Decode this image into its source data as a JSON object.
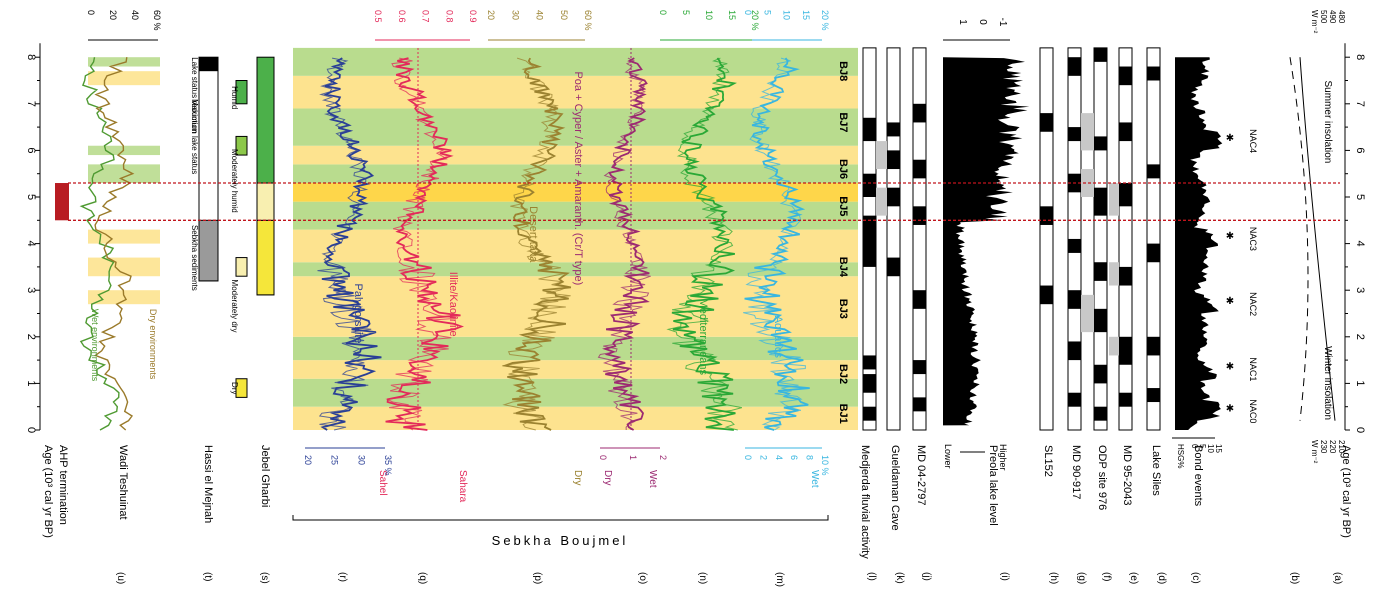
{
  "chart_data": {
    "type": "line",
    "title": "",
    "age_axis": {
      "label": "Age (10³ cal yr BP)",
      "ticks": [
        0,
        1,
        2,
        3,
        4,
        5,
        6,
        7,
        8
      ],
      "range": [
        0,
        8.3
      ]
    },
    "ahp_termination": {
      "start": 4.5,
      "end": 5.3
    },
    "section_label": "Sebkha Boujmel",
    "panel_letters": [
      "(a)",
      "(b)",
      "(c)",
      "(d)",
      "(e)",
      "(f)",
      "(g)",
      "(h)",
      "(i)",
      "(j)",
      "(k)",
      "(l)",
      "(m)",
      "(n)",
      "(o)",
      "(p)",
      "(q)",
      "(r)",
      "(s)",
      "(t)",
      "(u)"
    ],
    "panel_titles": [
      "Age (10³ cal yr BP)",
      "",
      "Bond events",
      "Lake Siles",
      "MD 95-2043",
      "ODP site 976",
      "MD 90-917",
      "SL152",
      "Preola lake level",
      "MD 04-2797",
      "Gueldaman Cave",
      "Medjerda fluvial activity",
      "",
      "",
      "",
      "",
      "",
      "",
      "Jebel Gharbi",
      "Hassi el Mejnah",
      "Wadi Teshuinat",
      "AHP termination",
      "Age (10³ cal yr BP)"
    ],
    "bands": [
      {
        "from": 0.0,
        "to": 0.5,
        "color": "yellow"
      },
      {
        "from": 0.5,
        "to": 1.1,
        "color": "green"
      },
      {
        "from": 1.1,
        "to": 1.5,
        "color": "yellow"
      },
      {
        "from": 1.5,
        "to": 2.0,
        "color": "green"
      },
      {
        "from": 2.0,
        "to": 3.3,
        "color": "yellow"
      },
      {
        "from": 3.3,
        "to": 3.6,
        "color": "green"
      },
      {
        "from": 3.6,
        "to": 4.3,
        "color": "yellow"
      },
      {
        "from": 4.3,
        "to": 4.9,
        "color": "green"
      },
      {
        "from": 4.9,
        "to": 5.3,
        "color": "yellow"
      },
      {
        "from": 5.3,
        "to": 5.7,
        "color": "green"
      },
      {
        "from": 5.7,
        "to": 6.1,
        "color": "yellow"
      },
      {
        "from": 6.1,
        "to": 6.9,
        "color": "green"
      },
      {
        "from": 6.9,
        "to": 7.6,
        "color": "yellow"
      },
      {
        "from": 7.6,
        "to": 8.2,
        "color": "green"
      }
    ],
    "bj_labels": [
      {
        "label": "BJ1",
        "age": 0.35
      },
      {
        "label": "BJ2",
        "age": 1.2
      },
      {
        "label": "BJ3",
        "age": 2.6
      },
      {
        "label": "BJ4",
        "age": 3.5
      },
      {
        "label": "BJ5",
        "age": 4.8
      },
      {
        "label": "BJ6",
        "age": 5.6
      },
      {
        "label": "BJ7",
        "age": 6.6
      },
      {
        "label": "BJ8",
        "age": 7.7
      }
    ],
    "insolation": {
      "top_ticks": [
        "W m⁻²",
        "500",
        "490",
        "480"
      ],
      "bottom_ticks": [
        "W m⁻²",
        "230",
        "220",
        "210"
      ],
      "summer_label": "Summer insolation",
      "winter_label": "Winter insolation"
    },
    "nac_labels": [
      {
        "label": "NAC0",
        "age": 0.4
      },
      {
        "label": "NAC1",
        "age": 1.3
      },
      {
        "label": "NAC2",
        "age": 2.7
      },
      {
        "label": "NAC3",
        "age": 4.1
      },
      {
        "label": "NAC4",
        "age": 6.2
      }
    ],
    "hsg": {
      "label": "HSG%",
      "ticks": [
        "0",
        "5",
        "10",
        "15"
      ]
    },
    "preola": {
      "top_ticks": [
        "1",
        "0",
        "-1"
      ],
      "lower": "Lower",
      "higher": "Higher"
    },
    "series": [
      {
        "name": "Aquatics",
        "color": "#38b6e0",
        "top_ticks": [
          "0",
          "5",
          "10",
          "15",
          "20 %"
        ],
        "bottom_ticks": [
          "0",
          "2",
          "4",
          "6",
          "8",
          "10 %"
        ],
        "bottom_label": "Wet"
      },
      {
        "name": "Mediterraneans",
        "color": "#2aa836",
        "top_ticks": [
          "0",
          "5",
          "10",
          "15",
          "20 %"
        ],
        "bottom_ticks": [],
        "bottom_label": ""
      },
      {
        "name": "Poa + Cyper / Aster + Amaranth. (Cr/T type)",
        "color": "#9c2a72",
        "top_ticks": [],
        "bottom_ticks": [
          "0",
          "1",
          "2"
        ],
        "bottom_left": "Dry",
        "bottom_label": "Wet"
      },
      {
        "name": "Desert taxa",
        "color": "#9b8230",
        "top_ticks": [
          "20",
          "30",
          "40",
          "50",
          "60 %"
        ],
        "bottom_ticks": [],
        "bottom_label": "Dry"
      },
      {
        "name": "Illite/Kaolinite",
        "color": "#e32a5a",
        "top_ticks": [
          "0.5",
          "0.6",
          "0.7",
          "0.8",
          "0.9"
        ],
        "bottom_ticks": [],
        "bottom_left": "Sahel",
        "bottom_label": "Sahara"
      },
      {
        "name": "Palygorskite",
        "color": "#2a3f96",
        "top_ticks": [],
        "bottom_ticks": [
          "20",
          "25",
          "30",
          "35 %"
        ],
        "bottom_label": ""
      }
    ],
    "jebel_gharbi": {
      "labels": [
        "Humid",
        "Moderately humid",
        "Moderately dry",
        "Dry"
      ]
    },
    "hassi": {
      "labels": [
        "Lake status reduction",
        "Maximum lake status",
        "Sebkha sediments"
      ]
    },
    "wadi": {
      "top_ticks": [
        "0",
        "20",
        "40",
        "60 %"
      ],
      "wet_label": "Wet environments",
      "dry_label": "Dry environments"
    },
    "colors": {
      "yellow_band": "#fde38f",
      "green_band": "#b9dc8e",
      "gold_band": "#fed64a",
      "ahp_red": "#b81c22",
      "black": "#000000",
      "aquatics": "#38b6e0",
      "mediterraneans": "#2aa836",
      "poa": "#9c2a72",
      "desert": "#9b8230",
      "illite": "#e32a5a",
      "palygorskite": "#2a3f96"
    }
  }
}
